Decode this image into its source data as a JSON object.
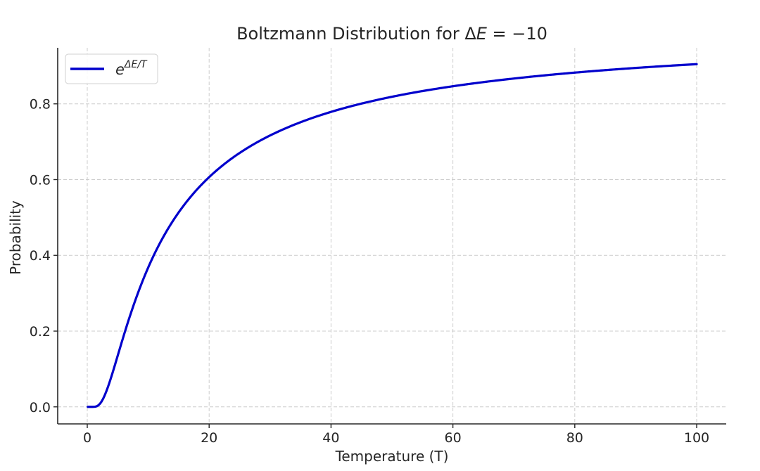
{
  "chart_data": {
    "type": "line",
    "title": "Boltzmann Distribution for ΔE = −10",
    "title_parts": {
      "prefix": "Boltzmann Distribution for ",
      "delta": "Δ",
      "var": "E",
      "suffix": " = −10"
    },
    "xlabel": "Temperature (T)",
    "ylabel": "Probability",
    "xlim": [
      -4.85,
      104.85
    ],
    "ylim": [
      -0.045,
      0.948
    ],
    "xticks": [
      0,
      20,
      40,
      60,
      80,
      100
    ],
    "xtick_labels": [
      "0",
      "20",
      "40",
      "60",
      "80",
      "100"
    ],
    "yticks": [
      0.0,
      0.2,
      0.4,
      0.6,
      0.8
    ],
    "ytick_labels": [
      "0.0",
      "0.2",
      "0.4",
      "0.6",
      "0.8"
    ],
    "grid": true,
    "legend_position": "upper left",
    "series": [
      {
        "name": "e^{ΔE/T}",
        "legend_base": "e",
        "legend_sup": "ΔE/T",
        "color": "#0000cc",
        "function": "exp(-10/T)",
        "x": [
          0.1,
          1,
          2,
          3,
          4,
          5,
          6,
          8,
          10,
          12,
          15,
          20,
          25,
          30,
          40,
          50,
          60,
          70,
          80,
          90,
          100
        ],
        "values": [
          0.0,
          5e-05,
          0.0067,
          0.0357,
          0.0821,
          0.1353,
          0.1889,
          0.2865,
          0.3679,
          0.4346,
          0.5134,
          0.6065,
          0.6703,
          0.7165,
          0.7788,
          0.8187,
          0.8465,
          0.8669,
          0.8825,
          0.8948,
          0.9048
        ]
      }
    ]
  }
}
